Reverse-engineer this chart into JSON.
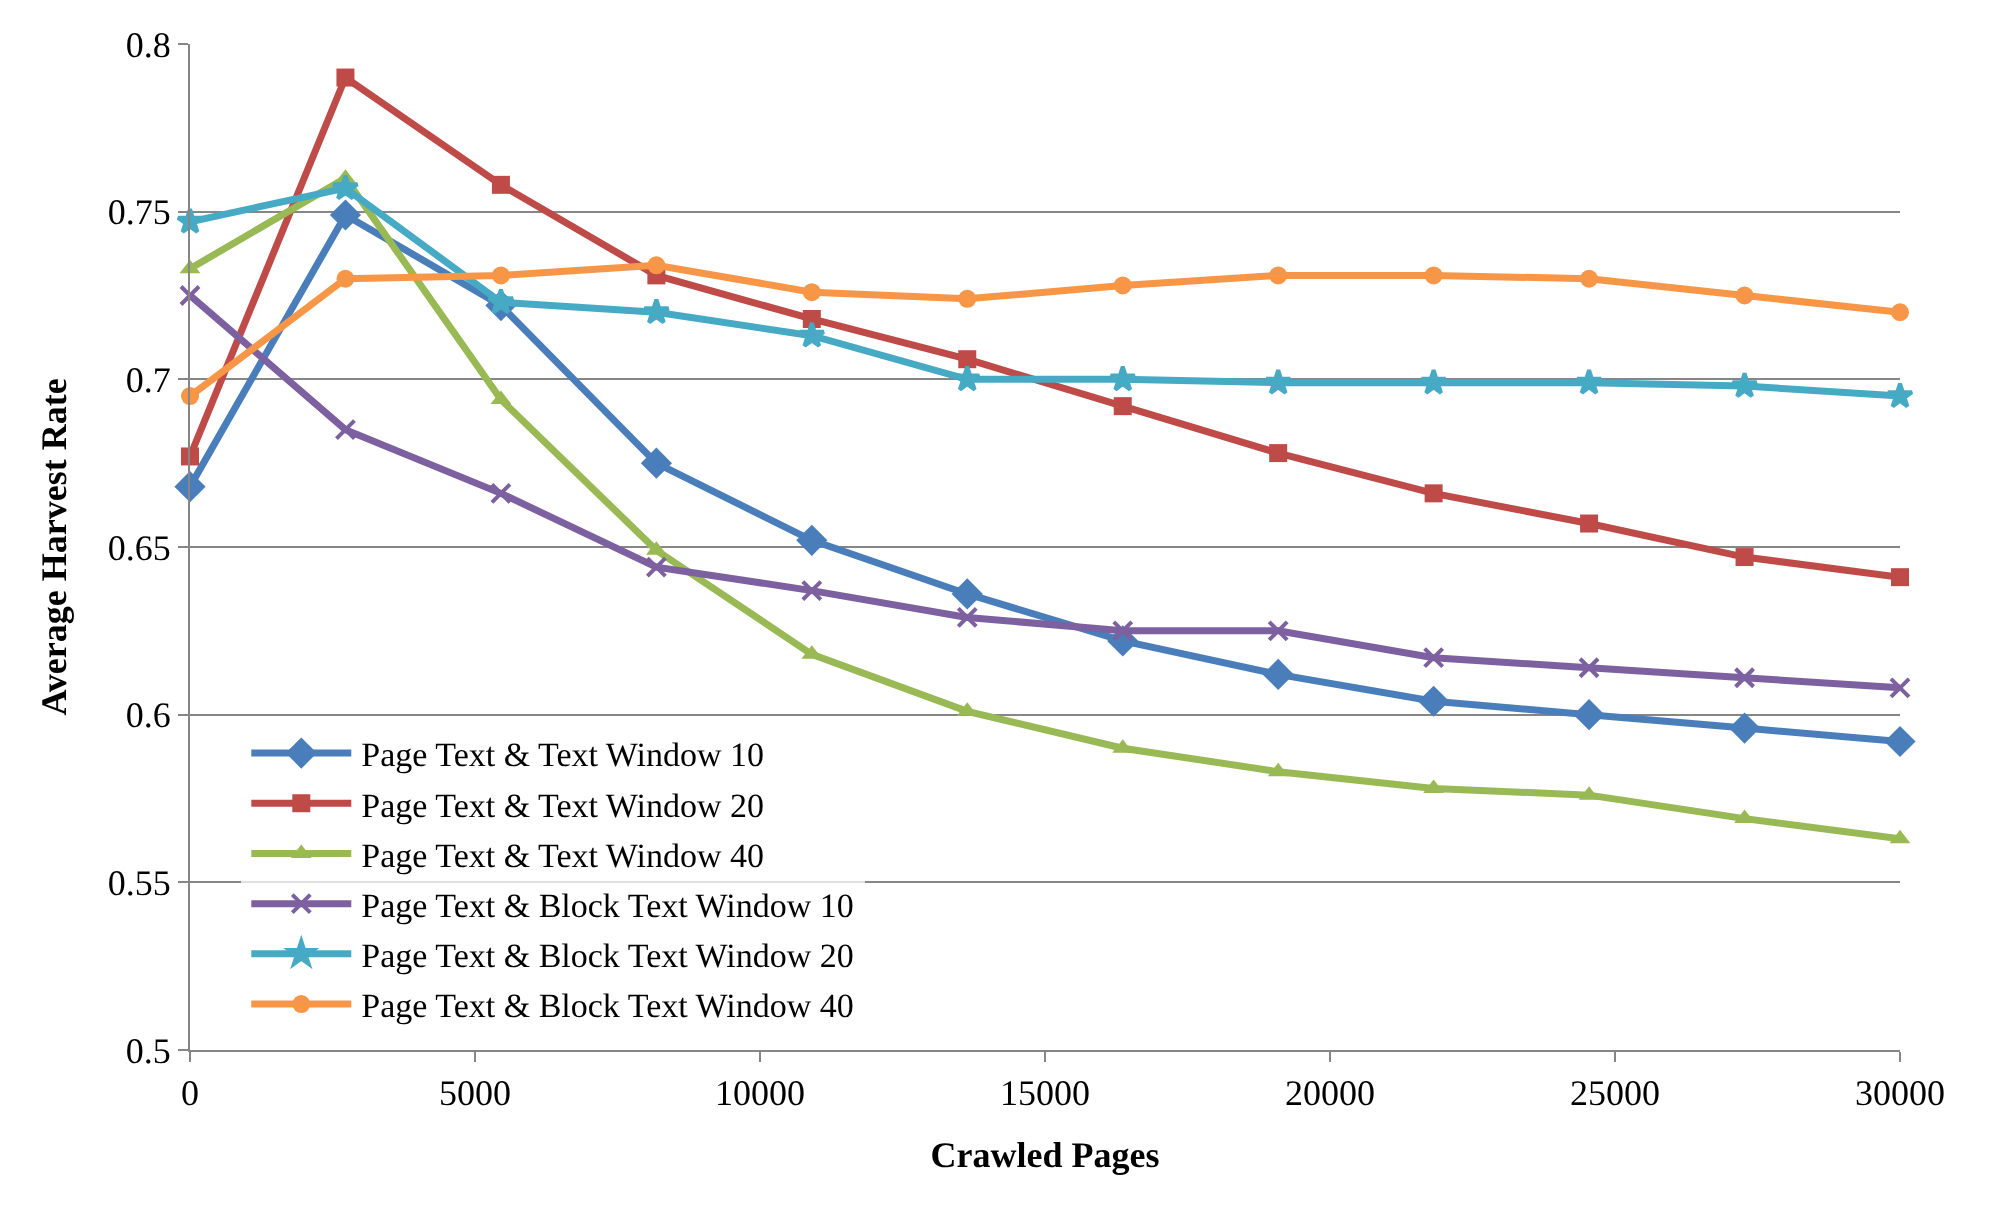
{
  "chart_data": {
    "type": "line",
    "xlabel": "Crawled Pages",
    "ylabel": "Average Harvest Rate",
    "x": [
      0,
      2727,
      5455,
      8182,
      10909,
      13636,
      16364,
      19091,
      21818,
      24545,
      27273,
      30000
    ],
    "xlim": [
      0,
      30000
    ],
    "xticks": [
      0,
      5000,
      10000,
      15000,
      20000,
      25000,
      30000
    ],
    "ylim": [
      0.5,
      0.8
    ],
    "yticks": [
      0.5,
      0.55,
      0.6,
      0.65,
      0.7,
      0.75,
      0.8
    ],
    "grid": "y",
    "legend": "bottom left",
    "line_style": "solid",
    "series": [
      {
        "name": "Page Text & Text Window 10",
        "color": "#4a7ebb",
        "marker": "diamond",
        "values": [
          0.668,
          0.749,
          0.722,
          0.675,
          0.652,
          0.636,
          0.622,
          0.612,
          0.604,
          0.6,
          0.596,
          0.592
        ]
      },
      {
        "name": "Page Text & Text Window 20",
        "color": "#be4b48",
        "marker": "square",
        "values": [
          0.677,
          0.79,
          0.758,
          0.731,
          0.718,
          0.706,
          0.692,
          0.678,
          0.666,
          0.657,
          0.647,
          0.641
        ]
      },
      {
        "name": "Page Text & Text Window 40",
        "color": "#98b954",
        "marker": "triangle",
        "values": [
          0.733,
          0.76,
          0.694,
          0.649,
          0.618,
          0.601,
          0.59,
          0.583,
          0.578,
          0.576,
          0.569,
          0.563
        ]
      },
      {
        "name": "Page Text & Block Text Window 10",
        "color": "#7d60a0",
        "marker": "cross",
        "values": [
          0.725,
          0.685,
          0.666,
          0.644,
          0.637,
          0.629,
          0.625,
          0.625,
          0.617,
          0.614,
          0.611,
          0.608
        ]
      },
      {
        "name": "Page Text & Block Text Window 20",
        "color": "#46aac5",
        "marker": "star",
        "values": [
          0.747,
          0.757,
          0.723,
          0.72,
          0.713,
          0.7,
          0.7,
          0.699,
          0.699,
          0.699,
          0.698,
          0.695
        ]
      },
      {
        "name": "Page Text & Block Text Window 40",
        "color": "#f79646",
        "marker": "circle",
        "values": [
          0.695,
          0.73,
          0.731,
          0.734,
          0.726,
          0.724,
          0.728,
          0.731,
          0.731,
          0.73,
          0.725,
          0.72
        ]
      }
    ]
  }
}
